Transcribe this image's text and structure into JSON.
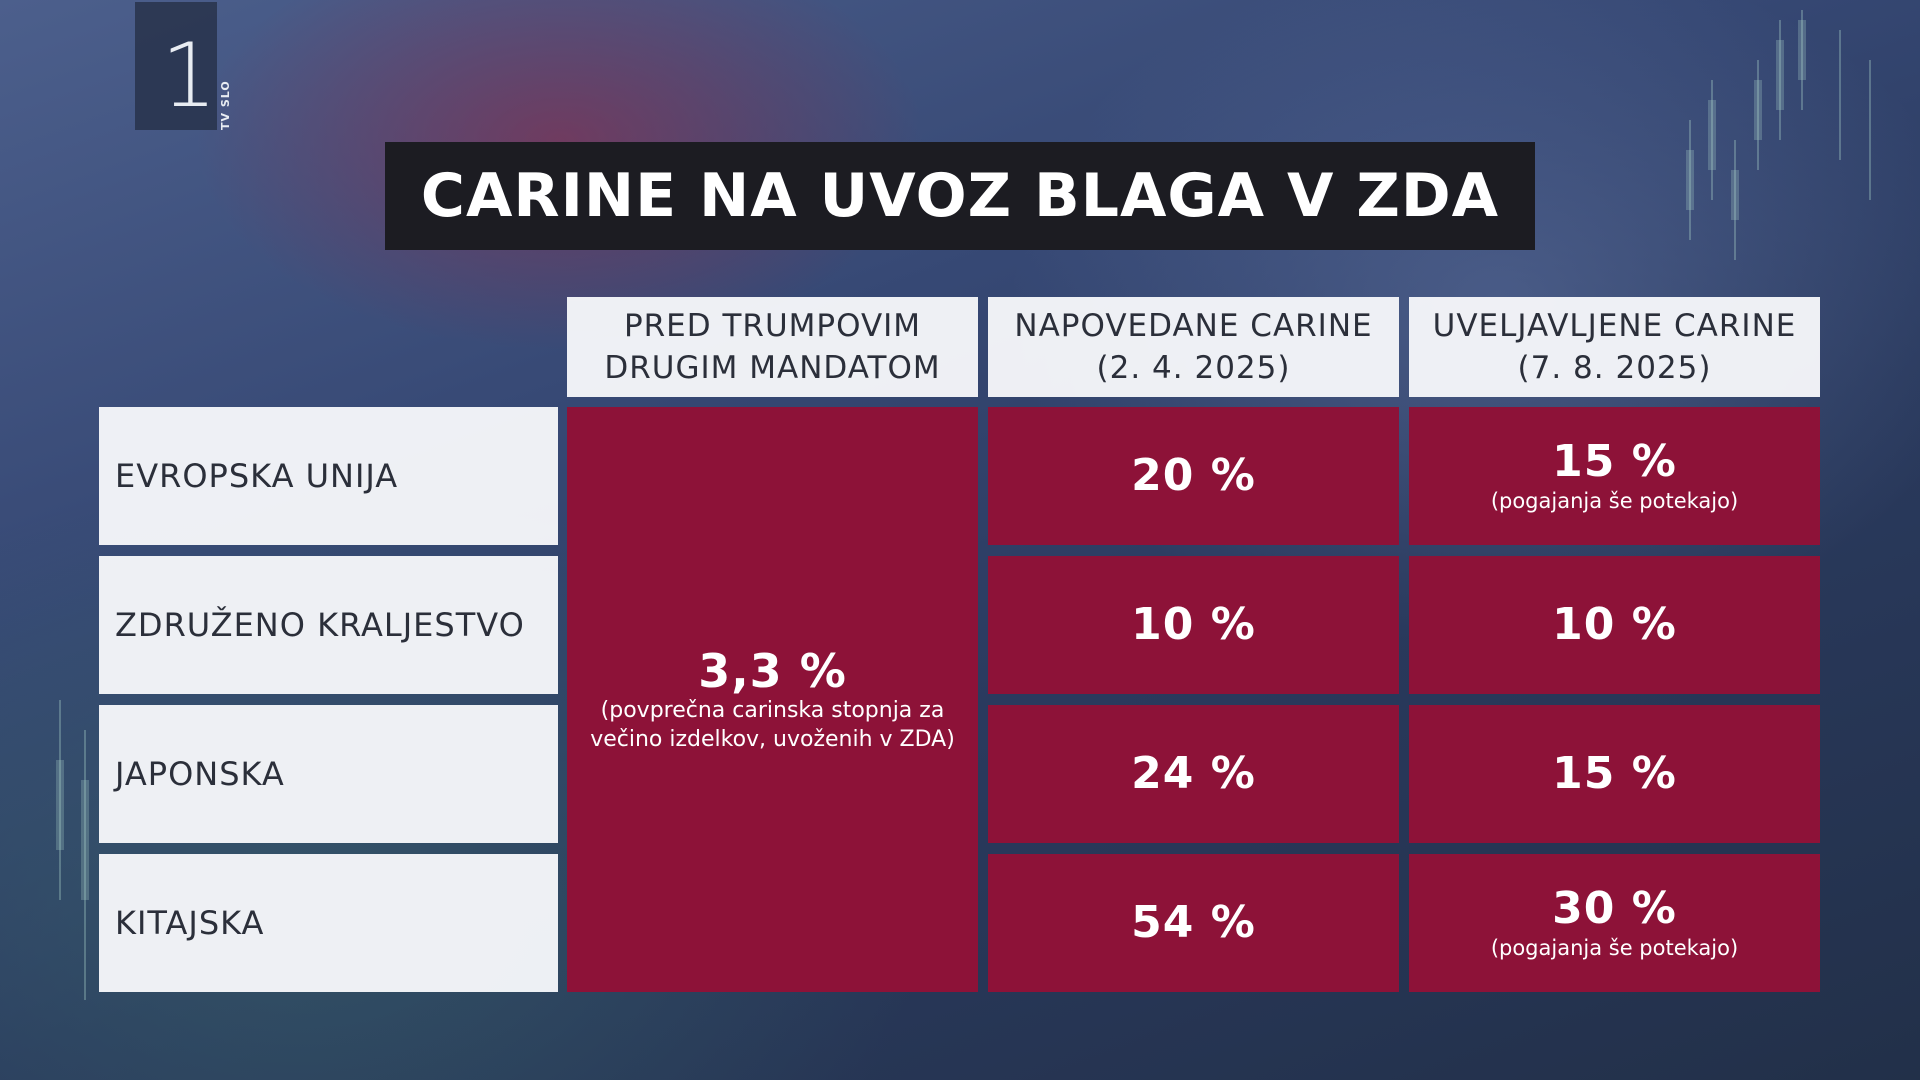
{
  "logo": {
    "number": "1",
    "brand": "TV SLO"
  },
  "title": "CARINE NA UVOZ BLAGA V ZDA",
  "columns": [
    {
      "line1": "PRED TRUMPOVIM",
      "line2": "DRUGIM MANDATOM"
    },
    {
      "line1": "NAPOVEDANE CARINE",
      "line2": "(2. 4. 2025)"
    },
    {
      "line1": "UVELJAVLJENE CARINE",
      "line2": "(7. 8. 2025)"
    }
  ],
  "rows": [
    {
      "country": "EVROPSKA UNIJA",
      "announced": "20 %",
      "enforced": "15 %",
      "enforced_note": "(pogajanja še potekajo)"
    },
    {
      "country": "ZDRUŽENO KRALJESTVO",
      "announced": "10 %",
      "enforced": "10 %",
      "enforced_note": ""
    },
    {
      "country": "JAPONSKA",
      "announced": "24 %",
      "enforced": "15 %",
      "enforced_note": ""
    },
    {
      "country": "KITAJSKA",
      "announced": "54 %",
      "enforced": "30 %",
      "enforced_note": "(pogajanja še potekajo)"
    }
  ],
  "before": {
    "value": "3,3 %",
    "note_line1": "(povprečna carinska stopnja za",
    "note_line2": "večino izdelkov, uvoženih v ZDA)"
  },
  "colors": {
    "cell": "#8d1238",
    "header_bg": "#f6f7fa",
    "title_bg": "#1c1c22"
  }
}
